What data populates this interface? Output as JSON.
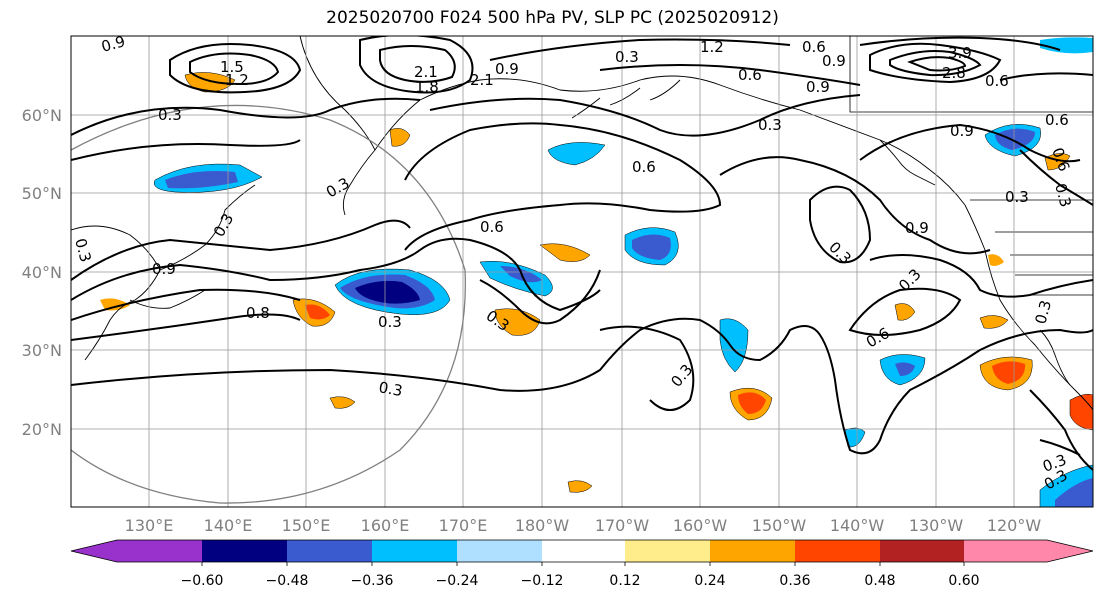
{
  "title": "2025020700 F024 500 hPa PV, SLP PC (2025020912)",
  "lat_labels": [
    "60°N",
    "50°N",
    "40°N",
    "30°N",
    "20°N"
  ],
  "lon_labels": [
    "130°E",
    "140°E",
    "150°E",
    "160°E",
    "170°E",
    "180°W",
    "170°W",
    "160°W",
    "150°W",
    "140°W",
    "130°W",
    "120°W"
  ],
  "colorbar": {
    "colors": [
      "#9932cc",
      "#000080",
      "#3a5bd0",
      "#00bfff",
      "#b0e0ff",
      "#ffffff",
      "#ffec8b",
      "#ffa500",
      "#ff4500",
      "#b22222",
      "#ff88aa"
    ],
    "tick_labels": [
      "−0.60",
      "−0.48",
      "−0.36",
      "−0.24",
      "−0.12",
      "0.12",
      "0.24",
      "0.36",
      "0.48",
      "0.60"
    ]
  },
  "contour_labels": [
    "0.9",
    "1.5",
    "1.2",
    "0.3",
    "2.1",
    "1.8",
    "2.1",
    "0.9",
    "0.3",
    "1.2",
    "0.6",
    "0.9",
    "0.6",
    "0.9",
    "3.9",
    "2.8",
    "0.6",
    "0.3",
    "0.9",
    "0.6",
    "0.6",
    "0.3",
    "0.3",
    "0.6",
    "0.9",
    "0.3",
    "0.3",
    "0.9",
    "0.3",
    "0.3",
    "0.8",
    "0.3",
    "0.3",
    "0.6",
    "0.3",
    "0.3",
    "0.3",
    "0.3",
    "0.3",
    "0.6",
    "0.3"
  ]
}
